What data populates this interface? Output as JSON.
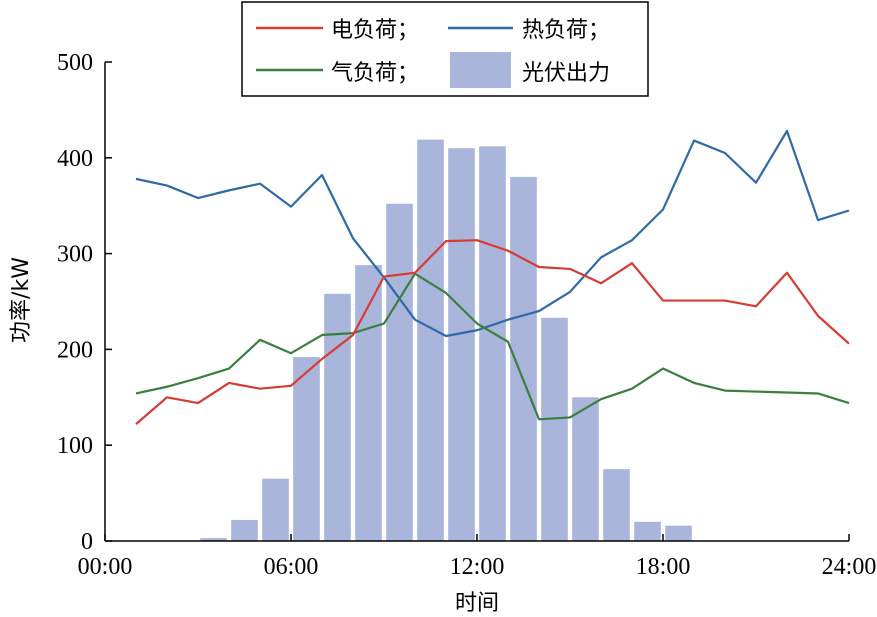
{
  "chart_data": {
    "type": "bar+line",
    "xlabel": "时间",
    "ylabel": "功率/kW",
    "xlim": [
      0,
      24
    ],
    "ylim": [
      0,
      500
    ],
    "x_ticks": [
      "00:00",
      "06:00",
      "12:00",
      "18:00",
      "24:00"
    ],
    "y_ticks": [
      "0",
      "100",
      "200",
      "300",
      "400",
      "500"
    ],
    "grid": false,
    "legend_position": "top-center",
    "bars": {
      "name": "光伏出力",
      "color": "#aab5dc",
      "x": [
        4,
        5,
        6,
        7,
        8,
        9,
        10,
        11,
        12,
        13,
        14,
        15,
        16,
        17,
        18,
        19
      ],
      "values": [
        3,
        22,
        65,
        192,
        258,
        288,
        352,
        419,
        410,
        412,
        380,
        233,
        150,
        75,
        20,
        16
      ]
    },
    "series": [
      {
        "name": "电负荷；",
        "color": "#d93a32",
        "x": [
          1,
          2,
          3,
          4,
          5,
          6,
          7,
          8,
          9,
          10,
          11,
          12,
          13,
          14,
          15,
          16,
          17,
          18,
          19,
          20,
          21,
          22,
          23,
          24
        ],
        "values": [
          122,
          150,
          144,
          165,
          159,
          162,
          190,
          215,
          276,
          280,
          313,
          314,
          303,
          286,
          284,
          269,
          290,
          251,
          251,
          251,
          245,
          280,
          235,
          206
        ]
      },
      {
        "name": "热负荷；",
        "color": "#2f6aa8",
        "x": [
          1,
          2,
          3,
          4,
          5,
          6,
          7,
          8,
          9,
          10,
          11,
          12,
          13,
          14,
          15,
          16,
          17,
          18,
          19,
          20,
          21,
          22,
          23,
          24
        ],
        "values": [
          378,
          371,
          358,
          366,
          373,
          349,
          382,
          316,
          275,
          231,
          214,
          220,
          231,
          240,
          260,
          296,
          314,
          346,
          418,
          405,
          374,
          428,
          335,
          345
        ]
      },
      {
        "name": "气负荷；",
        "color": "#3b7f3f",
        "x": [
          1,
          2,
          3,
          4,
          5,
          6,
          7,
          8,
          9,
          10,
          11,
          12,
          13,
          14,
          15,
          16,
          17,
          18,
          19,
          20,
          21,
          22,
          23,
          24
        ],
        "values": [
          154,
          161,
          170,
          180,
          210,
          196,
          215,
          217,
          227,
          279,
          259,
          227,
          208,
          127,
          129,
          148,
          159,
          180,
          165,
          157,
          156,
          155,
          154,
          144
        ]
      }
    ]
  }
}
